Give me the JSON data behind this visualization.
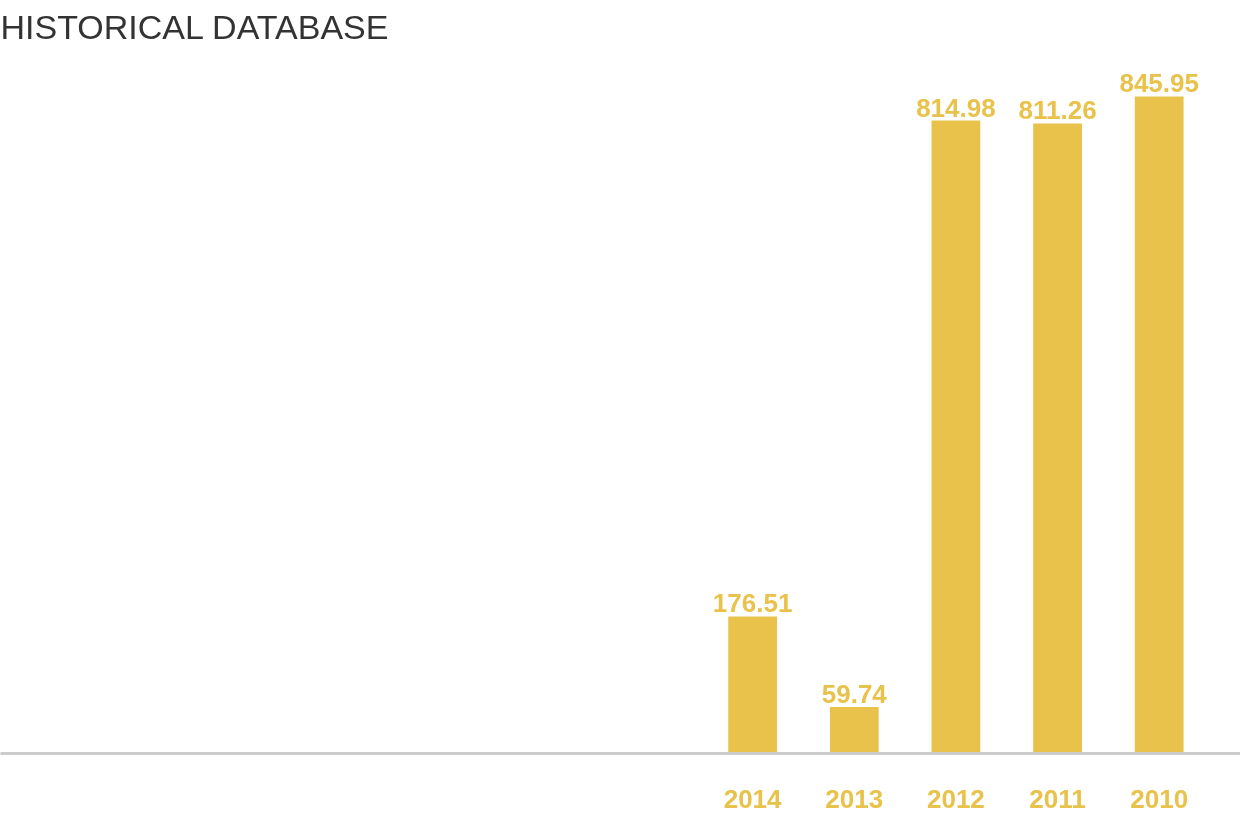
{
  "chart_data": {
    "type": "bar",
    "title": "HISTORICAL DATABASE",
    "categories": [
      "2014",
      "2013",
      "2012",
      "2011",
      "2010"
    ],
    "values": [
      176.51,
      59.74,
      814.98,
      811.26,
      845.95
    ],
    "color": "#e8c24b",
    "data_labels": true
  }
}
